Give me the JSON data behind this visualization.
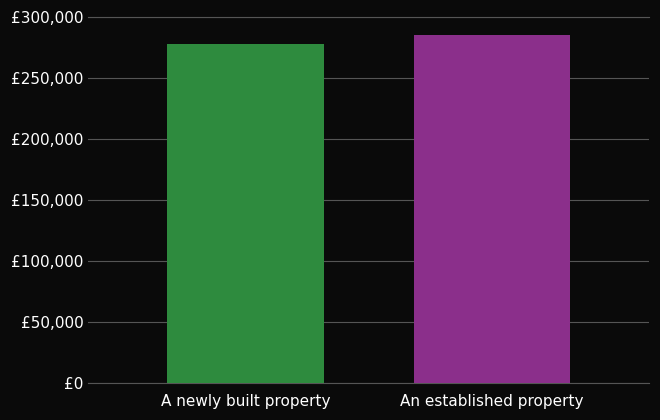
{
  "categories": [
    "A newly built property",
    "An established property"
  ],
  "values": [
    278000,
    285000
  ],
  "bar_colors": [
    "#2e8b3e",
    "#8b2f8b"
  ],
  "background_color": "#0a0a0a",
  "text_color": "#ffffff",
  "grid_color": "#555555",
  "ylim": [
    0,
    300000
  ],
  "yticks": [
    0,
    50000,
    100000,
    150000,
    200000,
    250000,
    300000
  ],
  "bar_width": 0.28,
  "x_positions": [
    0.28,
    0.72
  ],
  "xlim": [
    0,
    1
  ],
  "tick_fontsize": 11,
  "xlabel": "",
  "ylabel": ""
}
